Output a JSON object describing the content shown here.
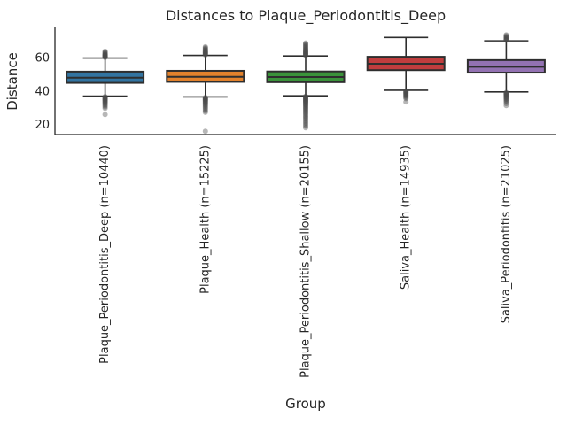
{
  "chart_data": {
    "type": "boxplot",
    "title": "Distances to Plaque_Periodontitis_Deep",
    "xlabel": "Group",
    "ylabel": "Distance",
    "ylim": [
      14.5,
      78.5
    ],
    "yticks": [
      20,
      40,
      60
    ],
    "grid": false,
    "legend": "none",
    "categories": [
      "Plaque_Periodontitis_Deep (n=10440)",
      "Plaque_Health (n=15225)",
      "Plaque_Periodontitis_Shallow (n=20155)",
      "Saliva_Health (n=14935)",
      "Saliva_Periodontitis (n=21025)"
    ],
    "colors": {
      "box_blue": "#3274a1",
      "box_orange": "#e1812c",
      "box_green": "#3a923a",
      "box_red": "#c03d3e",
      "box_purple": "#9372b2",
      "edge": "#2e2e2e",
      "spine": "#262626",
      "text": "#262626",
      "flier": "#4a4a4a"
    },
    "groups": [
      {
        "label": "Plaque_Periodontitis_Deep (n=10440)",
        "color": "#3274a1",
        "whislo": 37.5,
        "q1": 45.4,
        "med": 48.5,
        "q3": 52.1,
        "whishi": 60.2,
        "outliers": [
          60.6,
          60.9,
          61.0,
          61.2,
          61.5,
          61.6,
          61.8,
          62.1,
          62.2,
          62.4,
          62.7,
          63.0,
          63.4,
          63.8,
          64.3,
          37.2,
          36.9,
          36.6,
          36.3,
          36.0,
          35.7,
          35.4,
          35.1,
          34.8,
          34.5,
          34.1,
          33.7,
          33.3,
          32.8,
          32.3,
          31.7,
          31.0,
          30.2,
          26.5
        ]
      },
      {
        "label": "Plaque_Health (n=15225)",
        "color": "#e1812c",
        "whislo": 37.0,
        "q1": 46.0,
        "med": 49.0,
        "q3": 52.6,
        "whishi": 61.8,
        "outliers": [
          62.1,
          62.4,
          62.7,
          63.0,
          63.3,
          63.6,
          63.9,
          64.2,
          64.6,
          65.0,
          65.4,
          65.9,
          66.4,
          66.9,
          36.7,
          36.4,
          36.1,
          35.8,
          35.5,
          35.2,
          34.9,
          34.6,
          34.2,
          33.8,
          33.4,
          33.0,
          32.5,
          32.0,
          31.4,
          30.8,
          30.1,
          29.4,
          28.6,
          27.8,
          16.5
        ]
      },
      {
        "label": "Plaque_Periodontitis_Shallow (n=20155)",
        "color": "#3a923a",
        "whislo": 37.7,
        "q1": 45.8,
        "med": 48.9,
        "q3": 52.2,
        "whishi": 61.5,
        "outliers": [
          61.8,
          62.1,
          62.4,
          62.7,
          63.0,
          63.3,
          63.6,
          63.9,
          64.2,
          64.5,
          64.9,
          65.3,
          65.7,
          66.1,
          66.6,
          67.1,
          67.6,
          68.1,
          68.7,
          69.2,
          37.4,
          37.1,
          36.8,
          36.5,
          36.2,
          35.9,
          35.6,
          35.3,
          35.0,
          34.7,
          34.4,
          34.1,
          33.8,
          33.4,
          33.0,
          32.6,
          32.2,
          31.8,
          31.3,
          30.8,
          30.3,
          29.8,
          29.2,
          28.6,
          28.0,
          27.4,
          26.7,
          26.0,
          25.3,
          24.6,
          23.8,
          23.0,
          22.2,
          21.4,
          20.5,
          19.6,
          18.6
        ]
      },
      {
        "label": "Saliva_Health (n=14935)",
        "color": "#c03d3e",
        "whislo": 41.0,
        "q1": 53.0,
        "med": 56.8,
        "q3": 61.0,
        "whishi": 72.5,
        "outliers": [
          40.6,
          40.3,
          40.0,
          39.7,
          39.4,
          39.1,
          38.8,
          38.4,
          38.0,
          37.6,
          37.1,
          36.6,
          36.0,
          34.0
        ]
      },
      {
        "label": "Saliva_Periodontitis (n=21025)",
        "color": "#9372b2",
        "whislo": 40.0,
        "q1": 51.5,
        "med": 55.0,
        "q3": 59.0,
        "whishi": 70.5,
        "outliers": [
          70.9,
          71.2,
          71.5,
          71.9,
          72.3,
          72.7,
          73.1,
          73.6,
          74.1,
          39.6,
          39.3,
          39.0,
          38.7,
          38.4,
          38.1,
          37.8,
          37.4,
          37.0,
          36.6,
          36.2,
          35.7,
          35.2,
          34.6,
          33.9,
          33.0,
          31.8
        ]
      }
    ]
  }
}
